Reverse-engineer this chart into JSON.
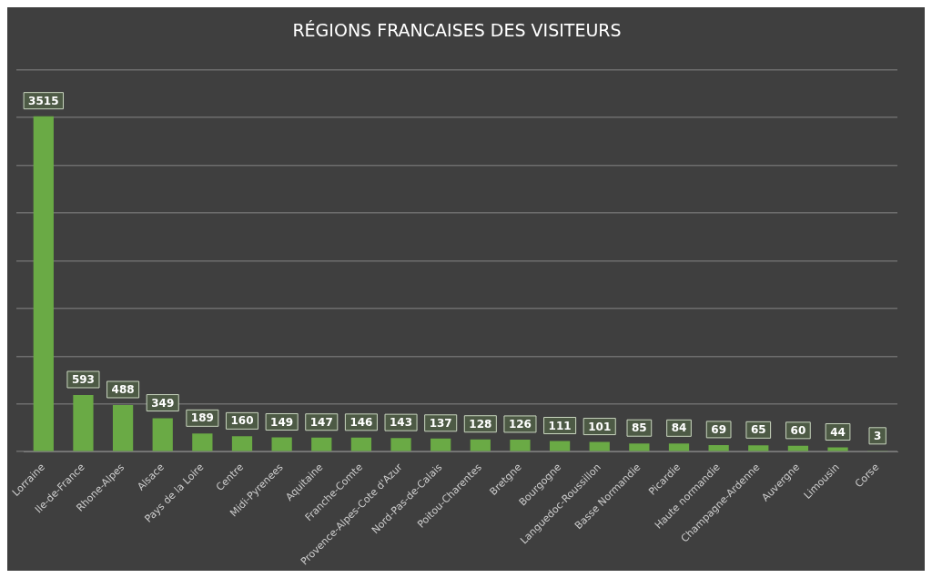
{
  "chart_data": {
    "type": "bar",
    "title": "RÉGIONS FRANCAISES DES VISITEURS",
    "categories": [
      "Lorraine",
      "Ile-de-France",
      "Rhone-Alpes",
      "Alsace",
      "Pays de la Loire",
      "Centre",
      "Midi-Pyrenees",
      "Aquitaine",
      "Franche-Comte",
      "Provence-Alpes-Cote d'Azur",
      "Nord-Pas-de-Calais",
      "Poitou-Charentes",
      "Bretgne",
      "Bourgogne",
      "Languedoc-Roussillon",
      "Basse Normandie",
      "Picardie",
      "Haute normandie",
      "Champagne-Ardenne",
      "Auvergne",
      "Limousin",
      "Corse"
    ],
    "values": [
      3515,
      593,
      488,
      349,
      189,
      160,
      149,
      147,
      146,
      143,
      137,
      128,
      126,
      111,
      101,
      85,
      84,
      69,
      65,
      60,
      44,
      3
    ],
    "color": "#6aaa45",
    "grid": "y",
    "tick_labels": "x",
    "data_labels": true
  }
}
